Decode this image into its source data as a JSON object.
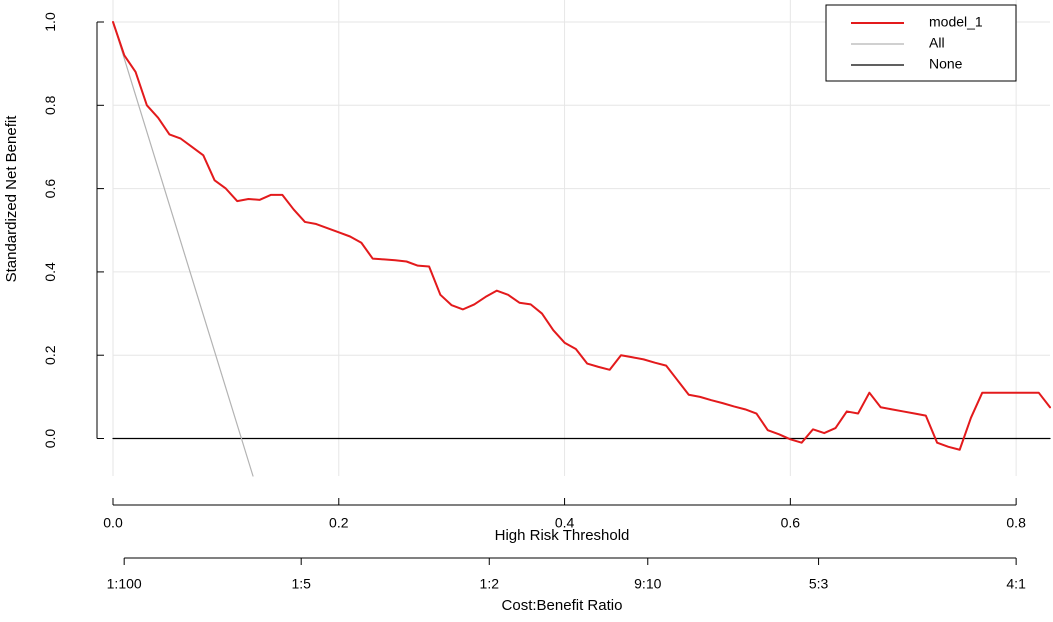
{
  "chart_data": {
    "type": "line",
    "title": "",
    "xlabel": "High Risk Threshold",
    "ylabel": "Standardized Net Benefit",
    "secondary_xlabel": "Cost:Benefit Ratio",
    "xlim": [
      0,
      0.83
    ],
    "ylim": [
      -0.09,
      1.0
    ],
    "grid": true,
    "legend_position": "top-right",
    "x_ticks": [
      0.0,
      0.2,
      0.4,
      0.6,
      0.8
    ],
    "x_tick_labels": [
      "0.0",
      "0.2",
      "0.4",
      "0.6",
      "0.8"
    ],
    "y_ticks": [
      0.0,
      0.2,
      0.4,
      0.6,
      0.8,
      1.0
    ],
    "y_tick_labels": [
      "0.0",
      "0.2",
      "0.4",
      "0.6",
      "0.8",
      "1.0"
    ],
    "cost_benefit_ticks": [
      {
        "x": 0.0099,
        "label": "1:100"
      },
      {
        "x": 0.1667,
        "label": "1:5"
      },
      {
        "x": 0.3333,
        "label": "1:2"
      },
      {
        "x": 0.4737,
        "label": "9:10"
      },
      {
        "x": 0.625,
        "label": "5:3"
      },
      {
        "x": 0.8,
        "label": "4:1"
      }
    ],
    "series": [
      {
        "name": "model_1",
        "color": "#e31a1c",
        "x": [
          0.0,
          0.01,
          0.02,
          0.03,
          0.04,
          0.05,
          0.06,
          0.07,
          0.08,
          0.09,
          0.1,
          0.11,
          0.12,
          0.13,
          0.14,
          0.15,
          0.16,
          0.17,
          0.18,
          0.19,
          0.2,
          0.21,
          0.22,
          0.23,
          0.24,
          0.25,
          0.26,
          0.27,
          0.28,
          0.29,
          0.3,
          0.31,
          0.32,
          0.33,
          0.34,
          0.35,
          0.36,
          0.37,
          0.38,
          0.39,
          0.4,
          0.41,
          0.42,
          0.43,
          0.44,
          0.45,
          0.46,
          0.47,
          0.48,
          0.49,
          0.5,
          0.51,
          0.52,
          0.53,
          0.54,
          0.55,
          0.56,
          0.57,
          0.58,
          0.59,
          0.6,
          0.61,
          0.62,
          0.63,
          0.64,
          0.65,
          0.66,
          0.67,
          0.68,
          0.69,
          0.7,
          0.71,
          0.72,
          0.73,
          0.74,
          0.75,
          0.76,
          0.77,
          0.78,
          0.79,
          0.8,
          0.81,
          0.82,
          0.83
        ],
        "values": [
          1.0,
          0.92,
          0.88,
          0.8,
          0.77,
          0.73,
          0.72,
          0.7,
          0.68,
          0.62,
          0.6,
          0.57,
          0.575,
          0.573,
          0.585,
          0.585,
          0.55,
          0.52,
          0.515,
          0.505,
          0.495,
          0.485,
          0.47,
          0.432,
          0.43,
          0.428,
          0.425,
          0.415,
          0.413,
          0.345,
          0.32,
          0.31,
          0.322,
          0.34,
          0.355,
          0.345,
          0.326,
          0.322,
          0.3,
          0.26,
          0.23,
          0.215,
          0.18,
          0.172,
          0.165,
          0.2,
          0.195,
          0.19,
          0.182,
          0.175,
          0.14,
          0.105,
          0.1,
          0.092,
          0.085,
          0.077,
          0.07,
          0.06,
          0.02,
          0.01,
          -0.002,
          -0.01,
          0.022,
          0.013,
          0.025,
          0.065,
          0.06,
          0.11,
          0.075,
          0.07,
          0.065,
          0.06,
          0.055,
          -0.01,
          -0.02,
          -0.027,
          0.05,
          0.11,
          0.11,
          0.11,
          0.11,
          0.11,
          0.11,
          0.075
        ]
      },
      {
        "name": "All",
        "color": "#b3b3b3",
        "x": [
          0.0,
          0.124
        ],
        "values": [
          1.0,
          -0.09
        ]
      },
      {
        "name": "None",
        "color": "#000000",
        "x": [
          0.0,
          0.83
        ],
        "values": [
          0.0,
          0.0
        ]
      }
    ]
  }
}
